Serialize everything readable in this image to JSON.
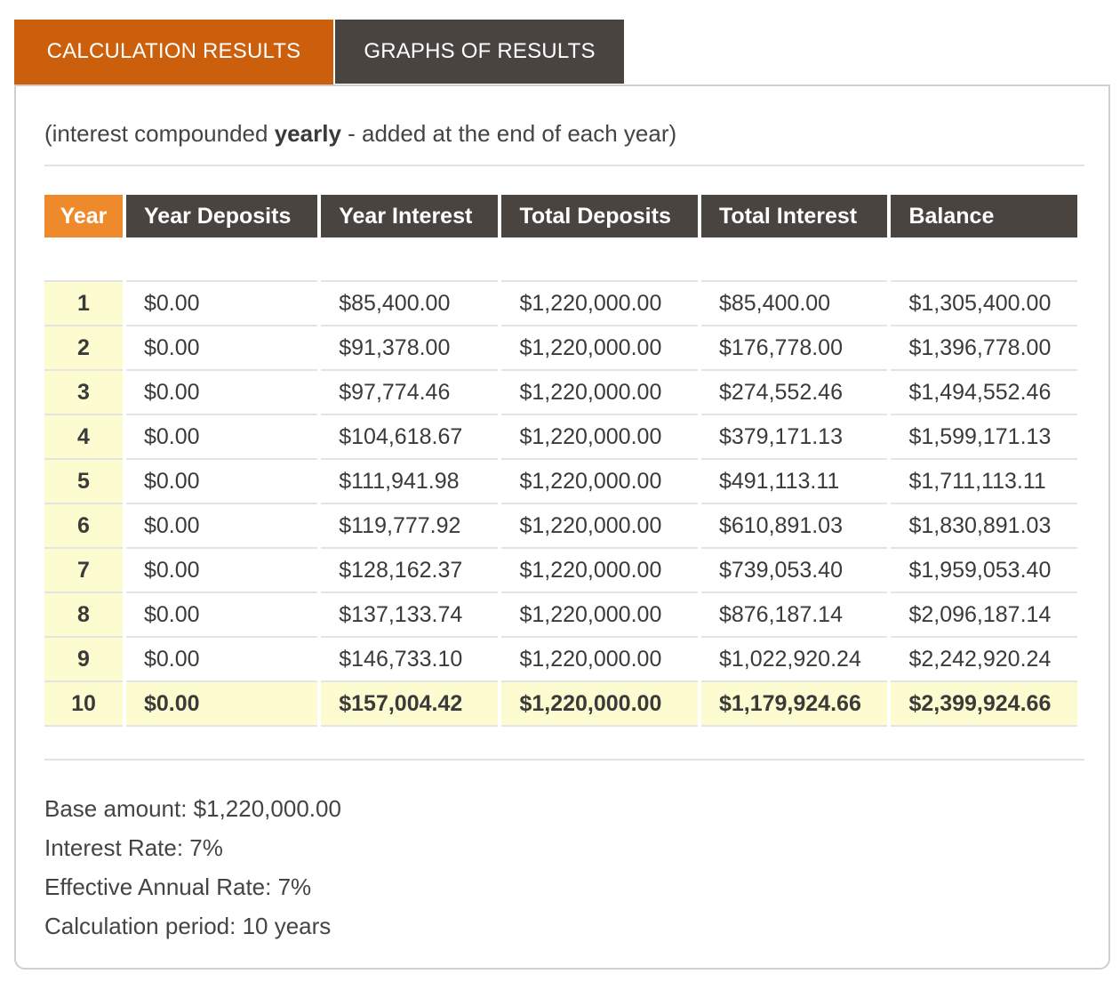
{
  "tabs": {
    "results": "CALCULATION RESULTS",
    "graphs": "GRAPHS OF RESULTS"
  },
  "note": {
    "prefix": "(interest compounded ",
    "bold": "yearly",
    "suffix": " - added at the end of each year)"
  },
  "table": {
    "headers": [
      "Year",
      "Year Deposits",
      "Year Interest",
      "Total Deposits",
      "Total Interest",
      "Balance"
    ],
    "rows": [
      [
        "1",
        "$0.00",
        "$85,400.00",
        "$1,220,000.00",
        "$85,400.00",
        "$1,305,400.00"
      ],
      [
        "2",
        "$0.00",
        "$91,378.00",
        "$1,220,000.00",
        "$176,778.00",
        "$1,396,778.00"
      ],
      [
        "3",
        "$0.00",
        "$97,774.46",
        "$1,220,000.00",
        "$274,552.46",
        "$1,494,552.46"
      ],
      [
        "4",
        "$0.00",
        "$104,618.67",
        "$1,220,000.00",
        "$379,171.13",
        "$1,599,171.13"
      ],
      [
        "5",
        "$0.00",
        "$111,941.98",
        "$1,220,000.00",
        "$491,113.11",
        "$1,711,113.11"
      ],
      [
        "6",
        "$0.00",
        "$119,777.92",
        "$1,220,000.00",
        "$610,891.03",
        "$1,830,891.03"
      ],
      [
        "7",
        "$0.00",
        "$128,162.37",
        "$1,220,000.00",
        "$739,053.40",
        "$1,959,053.40"
      ],
      [
        "8",
        "$0.00",
        "$137,133.74",
        "$1,220,000.00",
        "$876,187.14",
        "$2,096,187.14"
      ],
      [
        "9",
        "$0.00",
        "$146,733.10",
        "$1,220,000.00",
        "$1,022,920.24",
        "$2,242,920.24"
      ],
      [
        "10",
        "$0.00",
        "$157,004.42",
        "$1,220,000.00",
        "$1,179,924.66",
        "$2,399,924.66"
      ]
    ]
  },
  "summary": {
    "base_amount": "Base amount: $1,220,000.00",
    "interest_rate": "Interest Rate: 7%",
    "effective_rate": "Effective Annual Rate: 7%",
    "period": "Calculation period: 10 years"
  },
  "colors": {
    "active_tab": "#cc5f0c",
    "inactive_tab": "#4a4440",
    "year_header": "#ef8a2c",
    "highlight_cell": "#fdfcd0"
  }
}
